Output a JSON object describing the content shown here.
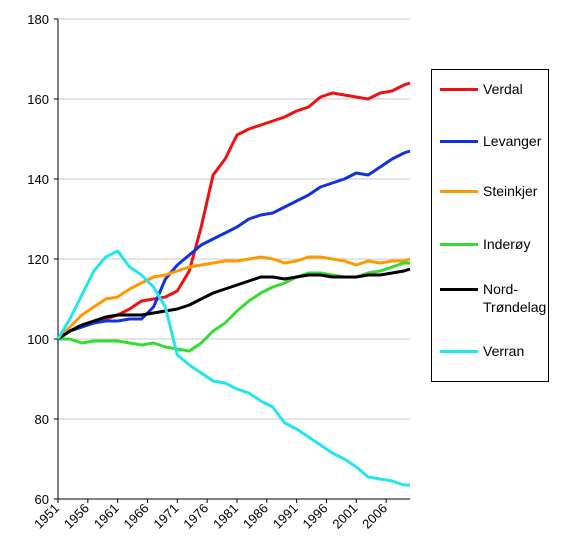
{
  "chart_data": {
    "type": "line",
    "x": [
      1951,
      1953,
      1955,
      1957,
      1959,
      1961,
      1963,
      1965,
      1967,
      1969,
      1971,
      1973,
      1975,
      1977,
      1979,
      1981,
      1983,
      1985,
      1987,
      1989,
      1991,
      1993,
      1995,
      1997,
      1999,
      2001,
      2003,
      2005,
      2007,
      2009,
      2010
    ],
    "xlim": [
      1951,
      2010
    ],
    "xticks": [
      1951,
      1956,
      1961,
      1966,
      1971,
      1976,
      1981,
      1986,
      1991,
      1996,
      2001,
      2006
    ],
    "ylim": [
      60,
      180
    ],
    "yticks": [
      60,
      80,
      100,
      120,
      140,
      160,
      180
    ],
    "grid": true,
    "legend": "right",
    "series": [
      {
        "name": "Verdal",
        "color": "#ee1111",
        "values": [
          100,
          102,
          103,
          104,
          105,
          106,
          107.5,
          109.5,
          110,
          110.5,
          112,
          117,
          128,
          141,
          145,
          151,
          152.5,
          153.5,
          154.5,
          155.5,
          157,
          158,
          160.5,
          161.5,
          161,
          160.5,
          160,
          161.5,
          162,
          163.5,
          164
        ]
      },
      {
        "name": "Levanger",
        "color": "#1133dd",
        "values": [
          100,
          102,
          103,
          104,
          104.5,
          104.5,
          105,
          105,
          108,
          115,
          118.5,
          121,
          123.5,
          125,
          126.5,
          128,
          130,
          131,
          131.5,
          133,
          134.5,
          136,
          138,
          139,
          140,
          141.5,
          141,
          143,
          145,
          146.5,
          147
        ]
      },
      {
        "name": "Steinkjer",
        "color": "#ff9900",
        "values": [
          100,
          103,
          106,
          108,
          110,
          110.5,
          112.5,
          114,
          115.5,
          116,
          117,
          118,
          118.5,
          119,
          119.5,
          119.5,
          120,
          120.5,
          120,
          119,
          119.5,
          120.5,
          120.5,
          120,
          119.5,
          118.5,
          119.5,
          119,
          119.5,
          119.5,
          120
        ]
      },
      {
        "name": "Inderøy",
        "color": "#33dd33",
        "values": [
          100,
          100,
          99,
          99.5,
          99.5,
          99.5,
          99,
          98.5,
          99,
          98,
          97.5,
          97,
          99,
          102,
          104,
          107,
          109.5,
          111.5,
          113,
          114,
          115.5,
          116.5,
          116.5,
          116,
          115.5,
          115.5,
          116.5,
          117,
          118,
          119,
          119
        ]
      },
      {
        "name": "Nord-Trøndelag",
        "color": "#000000",
        "values": [
          100,
          102,
          103.5,
          104.5,
          105.5,
          106,
          106,
          106,
          106.5,
          107,
          107.5,
          108.5,
          110,
          111.5,
          112.5,
          113.5,
          114.5,
          115.5,
          115.5,
          115,
          115.5,
          116,
          116,
          115.5,
          115.5,
          115.5,
          116,
          116,
          116.5,
          117,
          117.5
        ]
      },
      {
        "name": "Verran",
        "color": "#22e5f0",
        "values": [
          100,
          105,
          111,
          117,
          120.5,
          122,
          118,
          116,
          113,
          108,
          96,
          93.5,
          91.5,
          89.5,
          89,
          87.5,
          86.5,
          84.5,
          83,
          79,
          77.5,
          75.5,
          73.5,
          71.5,
          70,
          68,
          65.5,
          65,
          64.5,
          63.5,
          63.5
        ]
      }
    ]
  }
}
